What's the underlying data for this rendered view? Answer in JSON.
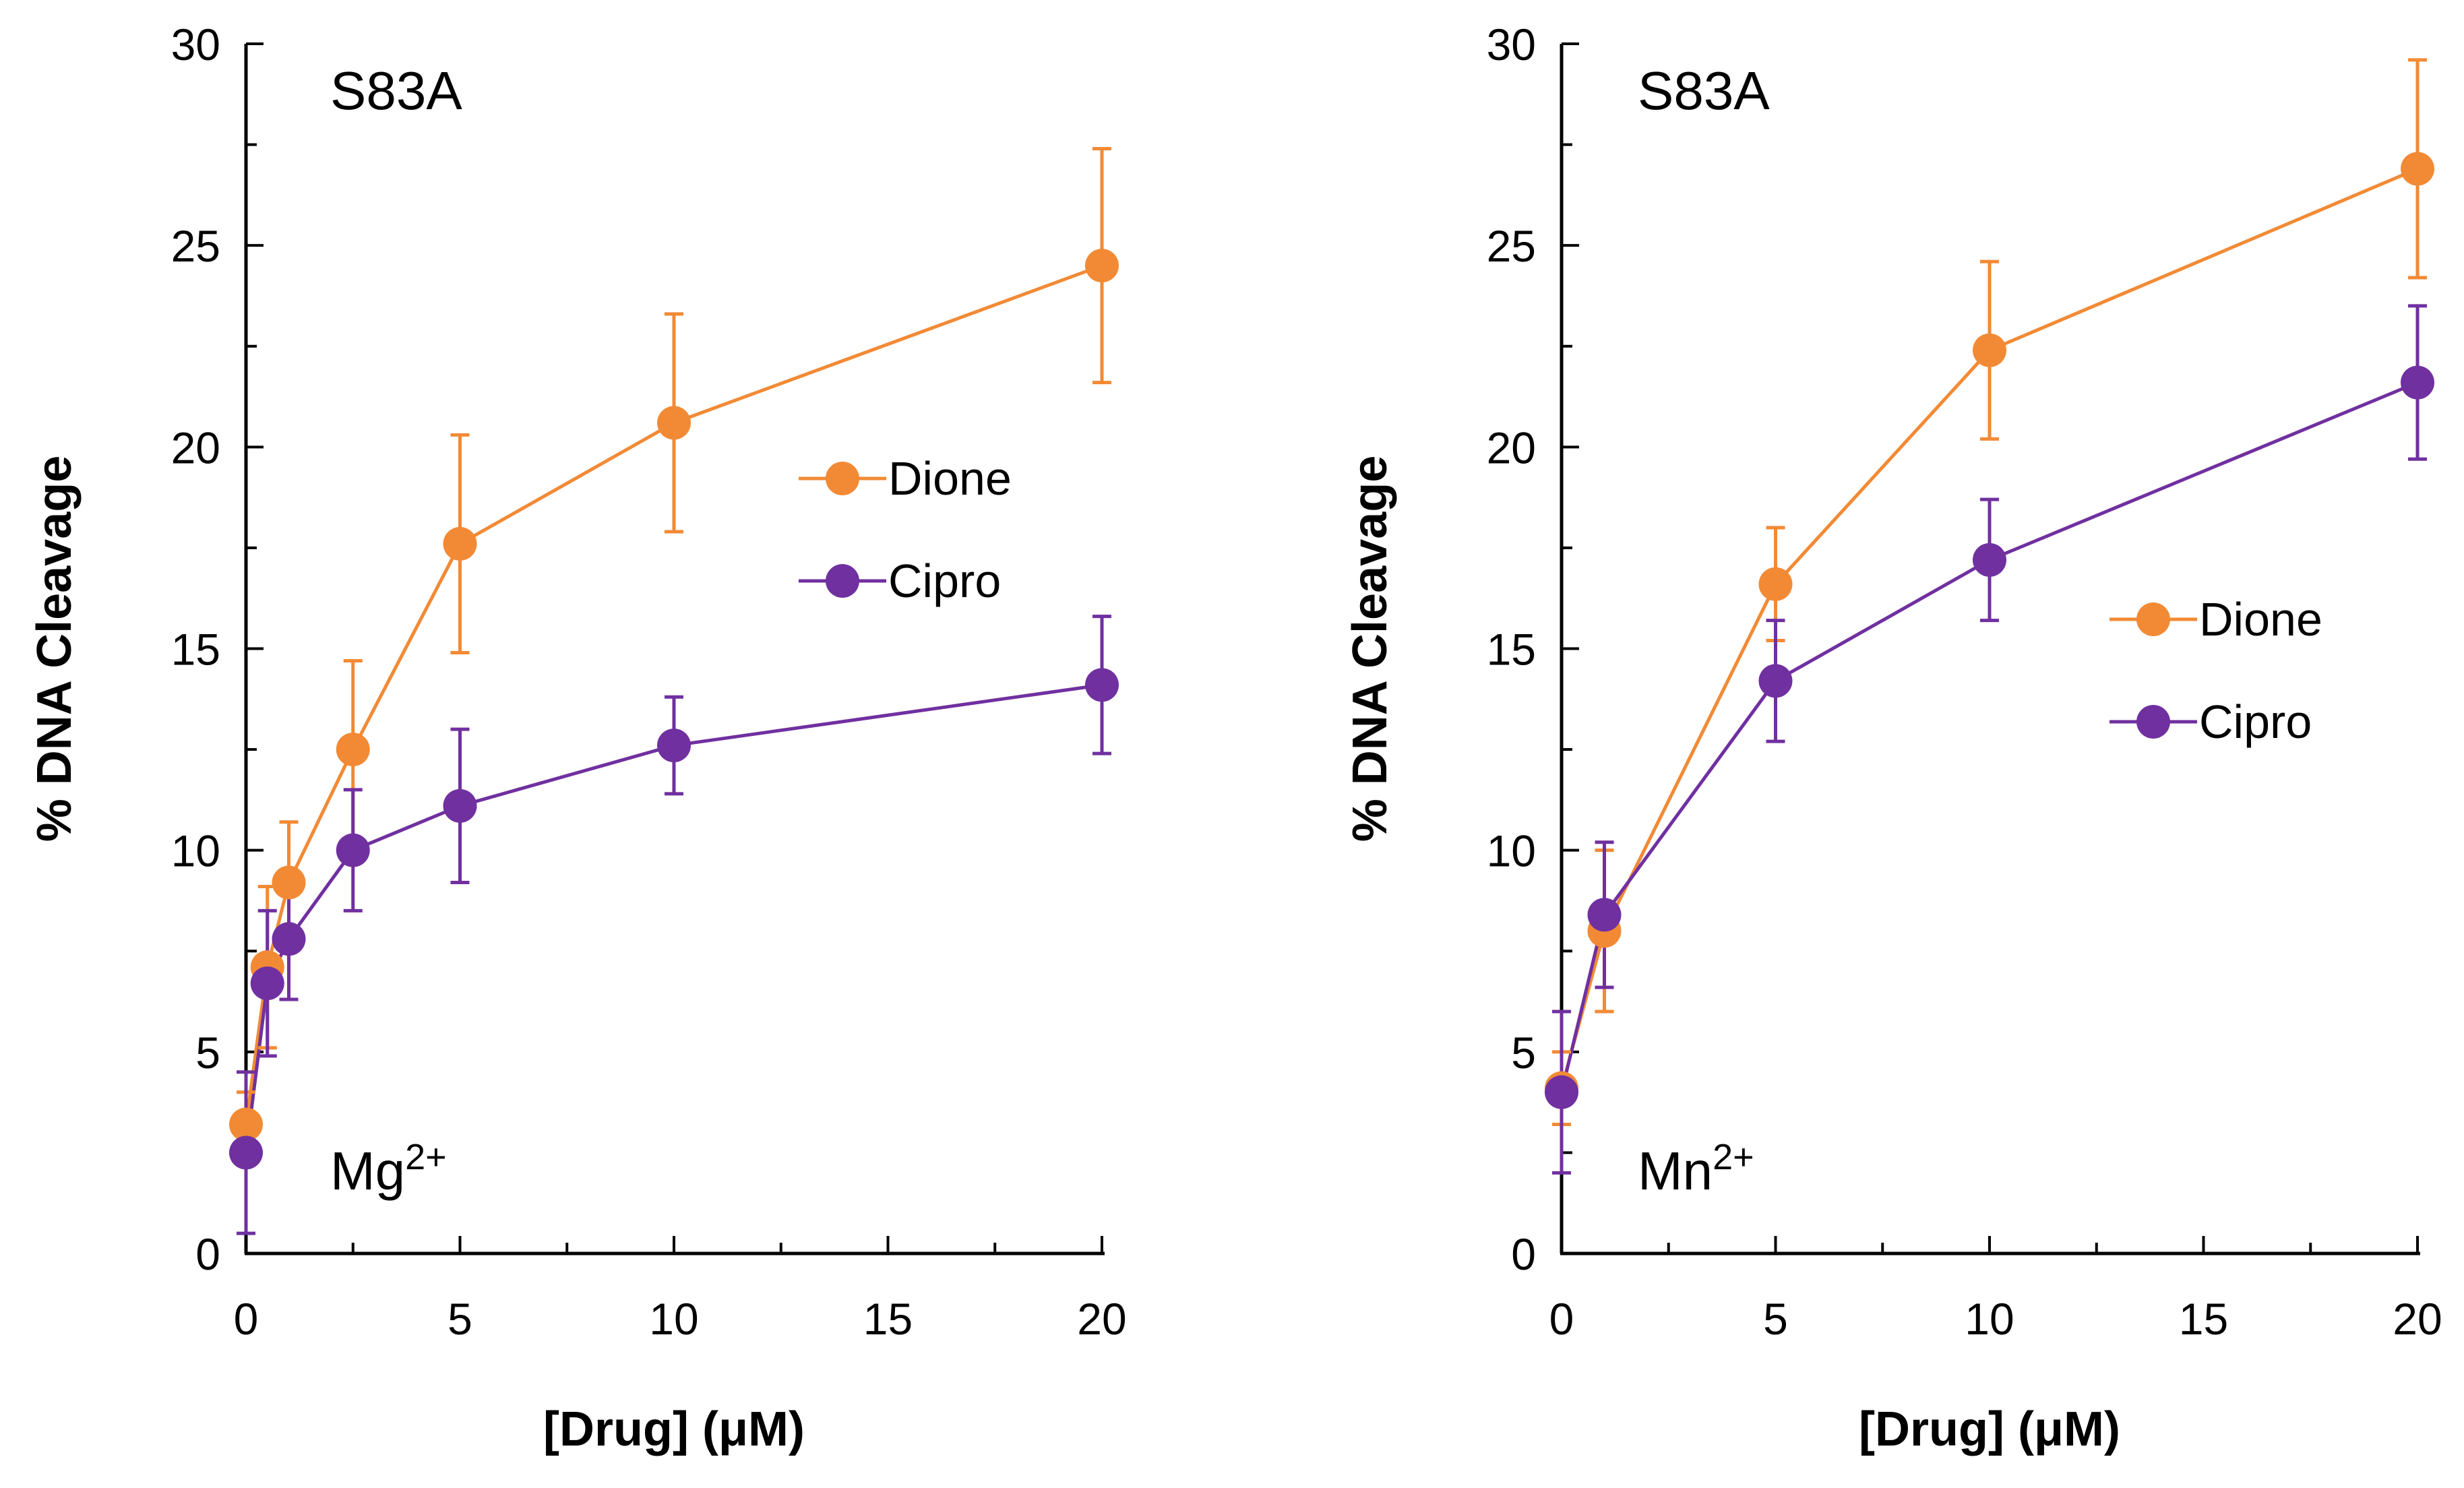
{
  "colors": {
    "dione": "#F28A35",
    "cipro": "#7030A0",
    "axis": "#000000"
  },
  "chart_data": [
    {
      "type": "line",
      "title": "S83A",
      "annotation": {
        "base": "Mg",
        "sup": "2+"
      },
      "xlabel": "[Drug] (μM)",
      "ylabel": "% DNA Cleavage",
      "xlim": [
        0,
        20
      ],
      "ylim": [
        0,
        30
      ],
      "xticks": [
        0,
        5,
        10,
        15,
        20
      ],
      "yticks": [
        0,
        5,
        10,
        15,
        20,
        25,
        30
      ],
      "legend_position": "center-right",
      "series": [
        {
          "name": "Dione",
          "x": [
            0,
            0.5,
            1,
            2.5,
            5,
            10,
            20
          ],
          "y": [
            3.2,
            7.1,
            9.2,
            12.5,
            17.6,
            20.6,
            24.5
          ],
          "err": [
            0.8,
            2.0,
            1.5,
            2.2,
            2.7,
            2.7,
            2.9
          ]
        },
        {
          "name": "Cipro",
          "x": [
            0,
            0.5,
            1,
            2.5,
            5,
            10,
            20
          ],
          "y": [
            2.5,
            6.7,
            7.8,
            10.0,
            11.1,
            12.6,
            14.1
          ],
          "err": [
            2.0,
            1.8,
            1.5,
            1.5,
            1.9,
            1.2,
            1.7
          ]
        }
      ]
    },
    {
      "type": "line",
      "title": "S83A",
      "annotation": {
        "base": "Mn",
        "sup": "2+"
      },
      "xlabel": "[Drug] (μM)",
      "ylabel": "% DNA Cleavage",
      "xlim": [
        0,
        20
      ],
      "ylim": [
        0,
        30
      ],
      "xticks": [
        0,
        5,
        10,
        15,
        20
      ],
      "yticks": [
        0,
        5,
        10,
        15,
        20,
        25,
        30
      ],
      "legend_position": "center-right",
      "series": [
        {
          "name": "Dione",
          "x": [
            0,
            1,
            5,
            10,
            20
          ],
          "y": [
            4.1,
            8.0,
            16.6,
            22.4,
            26.9
          ],
          "err": [
            0.9,
            2.0,
            1.4,
            2.2,
            2.7
          ]
        },
        {
          "name": "Cipro",
          "x": [
            0,
            1,
            5,
            10,
            20
          ],
          "y": [
            4.0,
            8.4,
            14.2,
            17.2,
            21.6
          ],
          "err": [
            2.0,
            1.8,
            1.5,
            1.5,
            1.9
          ]
        }
      ]
    }
  ]
}
